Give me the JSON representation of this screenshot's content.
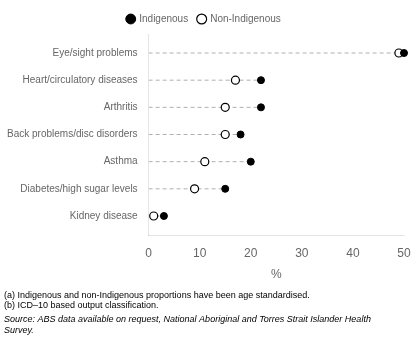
{
  "chart_data": {
    "type": "dot",
    "orientation": "horizontal",
    "categories": [
      "Eye/sight problems",
      "Heart/circulatory diseases",
      "Arthritis",
      "Back problems/disc disorders",
      "Asthma",
      "Diabetes/high sugar levels",
      "Kidney disease"
    ],
    "series": [
      {
        "name": "Indigenous",
        "color": "#000000",
        "marker": "circle",
        "values": [
          50,
          22,
          22,
          18,
          20,
          15,
          3
        ]
      },
      {
        "name": "Non-Indigenous",
        "color": "#000000",
        "marker": "open_circle",
        "values": [
          49,
          17,
          15,
          15,
          11,
          9,
          1
        ]
      }
    ],
    "color": "#b0b0b0",
    "line_style": "dashed",
    "xlabel": "%",
    "xlim": [
      0,
      50
    ],
    "xticks": [
      0,
      10,
      20,
      30,
      40,
      50
    ],
    "grid": false,
    "legend": "top",
    "annotations": [
      "(a) Indigenous and non-Indigenous proportions have been age standardised.",
      "(b) ICD–10 based output classification."
    ],
    "source": "Source: ABS data available on request, National Aboriginal and Torres Strait Islander Health Survey."
  }
}
